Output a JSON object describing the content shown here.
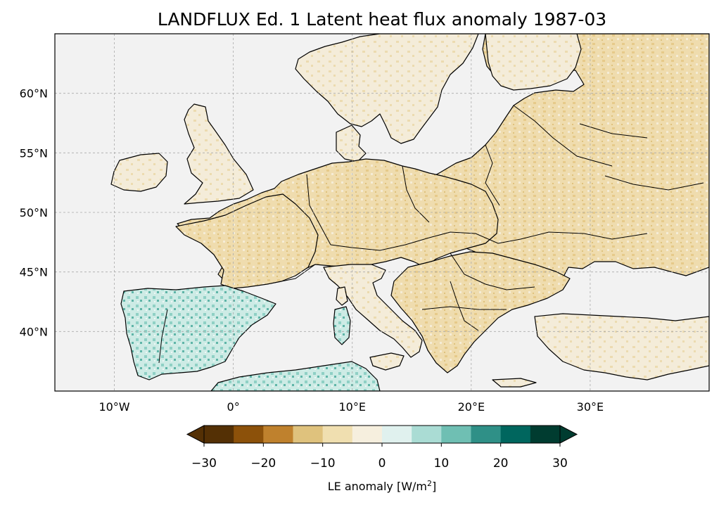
{
  "map": {
    "title": "LANDFLUX Ed. 1 Latent heat flux anomaly 1987-03",
    "lon_range": [
      -15,
      40
    ],
    "lat_range": [
      35,
      65
    ],
    "lon_ticks": [
      {
        "value": -10,
        "label": "10°W"
      },
      {
        "value": 0,
        "label": "0°"
      },
      {
        "value": 10,
        "label": "10°E"
      },
      {
        "value": 20,
        "label": "20°E"
      },
      {
        "value": 30,
        "label": "30°E"
      }
    ],
    "lat_ticks": [
      {
        "value": 60,
        "label": "60°N"
      },
      {
        "value": 55,
        "label": "55°N"
      },
      {
        "value": 50,
        "label": "50°N"
      },
      {
        "value": 45,
        "label": "45°N"
      },
      {
        "value": 40,
        "label": "40°N"
      }
    ],
    "gridlines": true,
    "colors": {
      "ocean": "#f2f2f2",
      "border": "#000000",
      "grid": "#aaaaaa"
    }
  },
  "colorbar": {
    "label": "LE anomaly [W/m²]",
    "label_main": "LE anomaly [W/m",
    "label_sup": "2",
    "label_end": "]",
    "extend": "both",
    "range": [
      -30,
      30
    ],
    "levels": [
      -30,
      -25,
      -20,
      -15,
      -10,
      -5,
      0,
      5,
      10,
      15,
      20,
      25,
      30
    ],
    "colors": [
      "#543005",
      "#8c510a",
      "#bf812d",
      "#dfc27d",
      "#f0dfb0",
      "#f6efde",
      "#e0f1ee",
      "#aadcd4",
      "#6fbfb3",
      "#2f9087",
      "#00665e",
      "#003c30"
    ],
    "under_color": "#543005",
    "over_color": "#003c30",
    "ticks": [
      {
        "value": -30,
        "label": "−30"
      },
      {
        "value": -20,
        "label": "−20"
      },
      {
        "value": -10,
        "label": "−10"
      },
      {
        "value": 0,
        "label": "0"
      },
      {
        "value": 10,
        "label": "10"
      },
      {
        "value": 20,
        "label": "20"
      },
      {
        "value": 30,
        "label": "30"
      }
    ]
  }
}
